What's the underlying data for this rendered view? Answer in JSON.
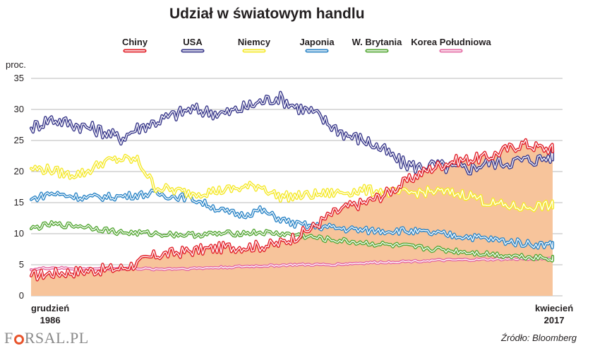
{
  "title": "Udział w światowym handlu",
  "source": "Źródło: Bloomberg",
  "logo": {
    "before": "F",
    "after": "RSAL.PL"
  },
  "chart_data": {
    "type": "line",
    "title": "Udział w światowym handlu",
    "ylabel": "proc.",
    "ylim": [
      0,
      35
    ],
    "yticks": [
      0,
      5,
      10,
      15,
      20,
      25,
      30,
      35
    ],
    "grid": true,
    "legend_position": "top",
    "x_start_label": [
      "grudzień",
      "1986"
    ],
    "x_end_label": [
      "kwiecień",
      "2017"
    ],
    "x_range": [
      1986.92,
      2017.25
    ],
    "series": [
      {
        "name": "Chiny",
        "color": "#e2212a",
        "filled": true,
        "fill_color": "#f7c49b",
        "x": [
          1986.92,
          1988,
          1990,
          1992,
          1993,
          1994,
          1996,
          1998,
          2000,
          2001,
          2002,
          2003,
          2004,
          2005,
          2006,
          2007,
          2008,
          2009,
          2010,
          2011,
          2012,
          2013,
          2014,
          2015,
          2016,
          2017.25
        ],
        "values": [
          3.2,
          3.6,
          4.0,
          4.4,
          5.2,
          6.5,
          7.2,
          7.8,
          8.0,
          8.3,
          9.5,
          11.0,
          13.0,
          14.3,
          15.0,
          16.2,
          17.8,
          19.5,
          20.8,
          21.7,
          22.0,
          22.3,
          23.5,
          24.5,
          23.8,
          23.5
        ]
      },
      {
        "name": "USA",
        "color": "#3b3a8c",
        "filled": false,
        "x": [
          1986.92,
          1988,
          1990,
          1991,
          1992,
          1993,
          1994,
          1995,
          1996,
          1998,
          1999,
          2000,
          2001,
          2002,
          2003,
          2004,
          2005,
          2006,
          2007,
          2008,
          2009,
          2010,
          2011,
          2012,
          2013,
          2014,
          2015,
          2016,
          2017.25
        ],
        "values": [
          27.0,
          28.5,
          27.2,
          26.5,
          25.3,
          27.0,
          28.0,
          29.0,
          30.0,
          29.3,
          30.2,
          31.2,
          32.0,
          30.5,
          29.5,
          27.5,
          25.8,
          25.0,
          23.5,
          21.5,
          20.7,
          21.0,
          20.5,
          20.5,
          21.5,
          21.5,
          21.8,
          22.0,
          23.0
        ]
      },
      {
        "name": "Niemcy",
        "color": "#f5e92a",
        "filled": false,
        "x": [
          1986.92,
          1988,
          1989,
          1990,
          1991,
          1992,
          1993,
          1994,
          1996,
          1998,
          2000,
          2001,
          2002,
          2004,
          2006,
          2008,
          2010,
          2012,
          2013,
          2014,
          2015,
          2016,
          2017.25
        ],
        "values": [
          20.5,
          20.3,
          19.5,
          19.8,
          21.5,
          22.0,
          21.8,
          17.5,
          16.5,
          17.0,
          17.8,
          16.0,
          16.0,
          16.5,
          17.0,
          16.5,
          16.8,
          16.2,
          15.0,
          14.5,
          14.2,
          14.5,
          14.5
        ]
      },
      {
        "name": "Japonia",
        "color": "#2d86c7",
        "filled": false,
        "x": [
          1986.92,
          1988,
          1990,
          1992,
          1994,
          1995,
          1996,
          1998,
          1999,
          2000,
          2001,
          2002,
          2004,
          2006,
          2008,
          2010,
          2012,
          2014,
          2016,
          2017.25
        ],
        "values": [
          15.5,
          16.5,
          15.8,
          16.0,
          16.5,
          16.0,
          15.8,
          13.5,
          13.0,
          13.8,
          12.5,
          11.5,
          11.0,
          10.5,
          10.5,
          10.0,
          9.5,
          8.8,
          8.2,
          8.3
        ]
      },
      {
        "name": "W. Brytania",
        "color": "#56a836",
        "filled": false,
        "x": [
          1986.92,
          1988,
          1990,
          1992,
          1994,
          1996,
          1998,
          2000,
          2002,
          2004,
          2006,
          2008,
          2010,
          2012,
          2014,
          2016,
          2017.25
        ],
        "values": [
          10.8,
          11.5,
          11.2,
          10.2,
          10.0,
          9.8,
          10.0,
          10.2,
          9.8,
          9.0,
          8.5,
          8.0,
          7.5,
          7.0,
          6.5,
          6.2,
          5.8
        ]
      },
      {
        "name": "Korea Południowa",
        "color": "#e46aa3",
        "filled": false,
        "x": [
          1986.92,
          1988,
          1990,
          1992,
          1993,
          1994,
          1996,
          1998,
          2000,
          2002,
          2004,
          2006,
          2008,
          2010,
          2012,
          2014,
          2016,
          2017.25
        ],
        "values": [
          4.2,
          4.5,
          4.3,
          4.4,
          4.4,
          4.3,
          4.4,
          4.6,
          4.8,
          5.0,
          5.0,
          5.3,
          5.5,
          5.7,
          5.8,
          5.9,
          6.0,
          6.0
        ]
      }
    ]
  }
}
